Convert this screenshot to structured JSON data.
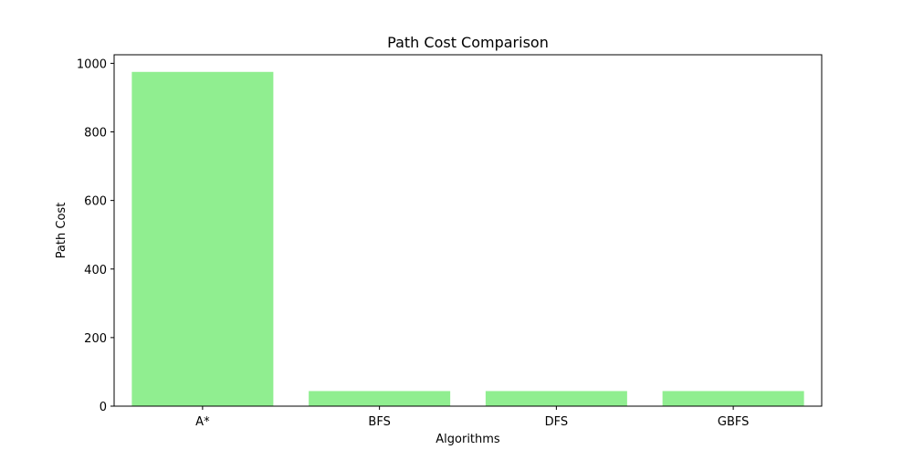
{
  "chart_data": {
    "type": "bar",
    "title": "Path Cost Comparison",
    "xlabel": "Algorithms",
    "ylabel": "Path Cost",
    "categories": [
      "A*",
      "BFS",
      "DFS",
      "GBFS"
    ],
    "values": [
      975,
      44,
      44,
      44
    ],
    "ylim": [
      0,
      1025
    ],
    "yticks": [
      0,
      200,
      400,
      600,
      800,
      1000
    ],
    "bar_color": "#90ee90",
    "grid": false
  }
}
